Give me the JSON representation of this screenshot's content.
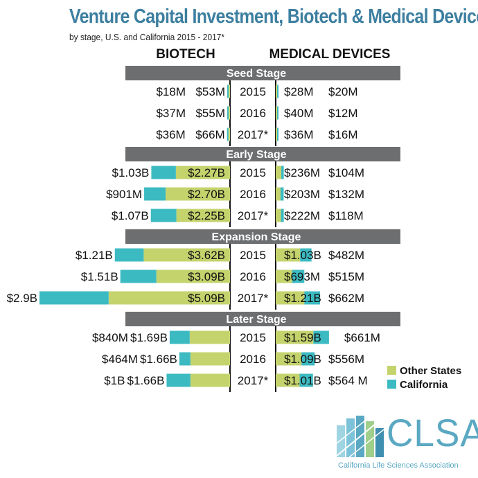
{
  "title": "Venture Capital Investment, Biotech & Medical Devices",
  "subtitle": "by stage, U.S. and California 2015 - 2017*",
  "colors": {
    "other_states": "#c5d36d",
    "california": "#3cbac2",
    "stage_bar": "#6d6e70",
    "title": "#3d7fa0"
  },
  "chart_data": {
    "type": "bar",
    "orientation": "horizontal-diverging",
    "column_headers": [
      "BIOTECH",
      "MEDICAL DEVICES"
    ],
    "legend": {
      "position": "right",
      "entries": [
        "Other States",
        "California"
      ]
    },
    "stages": [
      {
        "name": "Seed Stage",
        "rows": [
          {
            "year": "2015",
            "biotech": {
              "california": 18,
              "california_label": "$18M",
              "other": 53,
              "other_label": "$53M"
            },
            "meddev": {
              "other": 28,
              "other_label": "$28M",
              "california": 20,
              "california_label": "$20M"
            }
          },
          {
            "year": "2016",
            "biotech": {
              "california": 37,
              "california_label": "$37M",
              "other": 55,
              "other_label": "$55M"
            },
            "meddev": {
              "other": 40,
              "other_label": "$40M",
              "california": 12,
              "california_label": "$12M"
            }
          },
          {
            "year": "2017*",
            "biotech": {
              "california": 36,
              "california_label": "$36M",
              "other": 66,
              "other_label": "$66M"
            },
            "meddev": {
              "other": 36,
              "other_label": "$36M",
              "california": 16,
              "california_label": "$16M"
            }
          }
        ]
      },
      {
        "name": "Early Stage",
        "rows": [
          {
            "year": "2015",
            "biotech": {
              "california": 1030,
              "california_label": "$1.03B",
              "other": 2270,
              "other_label": "$2.27B"
            },
            "meddev": {
              "other": 236,
              "other_label": "$236M",
              "california": 104,
              "california_label": "$104M"
            }
          },
          {
            "year": "2016",
            "biotech": {
              "california": 901,
              "california_label": "$901M",
              "other": 2700,
              "other_label": "$2.70B"
            },
            "meddev": {
              "other": 203,
              "other_label": "$203M",
              "california": 132,
              "california_label": "$132M"
            }
          },
          {
            "year": "2017*",
            "biotech": {
              "california": 1070,
              "california_label": "$1.07B",
              "other": 2250,
              "other_label": "$2.25B"
            },
            "meddev": {
              "other": 222,
              "other_label": "$222M",
              "california": 118,
              "california_label": "$118M"
            }
          }
        ]
      },
      {
        "name": "Expansion Stage",
        "rows": [
          {
            "year": "2015",
            "biotech": {
              "california": 1210,
              "california_label": "$1.21B",
              "other": 3620,
              "other_label": "$3.62B"
            },
            "meddev": {
              "other": 1030,
              "other_label": "$1.03B",
              "california": 482,
              "california_label": "$482M"
            }
          },
          {
            "year": "2016",
            "biotech": {
              "california": 1510,
              "california_label": "$1.51B",
              "other": 3090,
              "other_label": "$3.09B"
            },
            "meddev": {
              "other": 693,
              "other_label": "$693M",
              "california": 515,
              "california_label": "$515M"
            }
          },
          {
            "year": "2017*",
            "biotech": {
              "california": 2900,
              "california_label": "$2.9B",
              "other": 5090,
              "other_label": "$5.09B"
            },
            "meddev": {
              "other": 1210,
              "other_label": "$1.21B",
              "california": 662,
              "california_label": "$662M"
            }
          }
        ]
      },
      {
        "name": "Later Stage",
        "rows": [
          {
            "year": "2015",
            "biotech": {
              "california": 840,
              "california_label": "$840M",
              "other": 1690,
              "other_label": "$1.69B"
            },
            "meddev": {
              "other": 1590,
              "other_label": "$1.59B",
              "california": 661,
              "california_label": "$661M"
            }
          },
          {
            "year": "2016",
            "biotech": {
              "california": 464,
              "california_label": "$464M",
              "other": 1660,
              "other_label": "$1.66B"
            },
            "meddev": {
              "other": 1090,
              "other_label": "$1.09B",
              "california": 556,
              "california_label": "$556M"
            }
          },
          {
            "year": "2017*",
            "biotech": {
              "california": 1000,
              "california_label": "$1B",
              "other": 1660,
              "other_label": "$1.66B"
            },
            "meddev": {
              "other": 1010,
              "other_label": "$1.01B",
              "california": 564,
              "california_label": "$564 M"
            }
          }
        ]
      }
    ]
  },
  "logo": {
    "name": "CLSA",
    "tagline": "California Life Sciences Association"
  }
}
